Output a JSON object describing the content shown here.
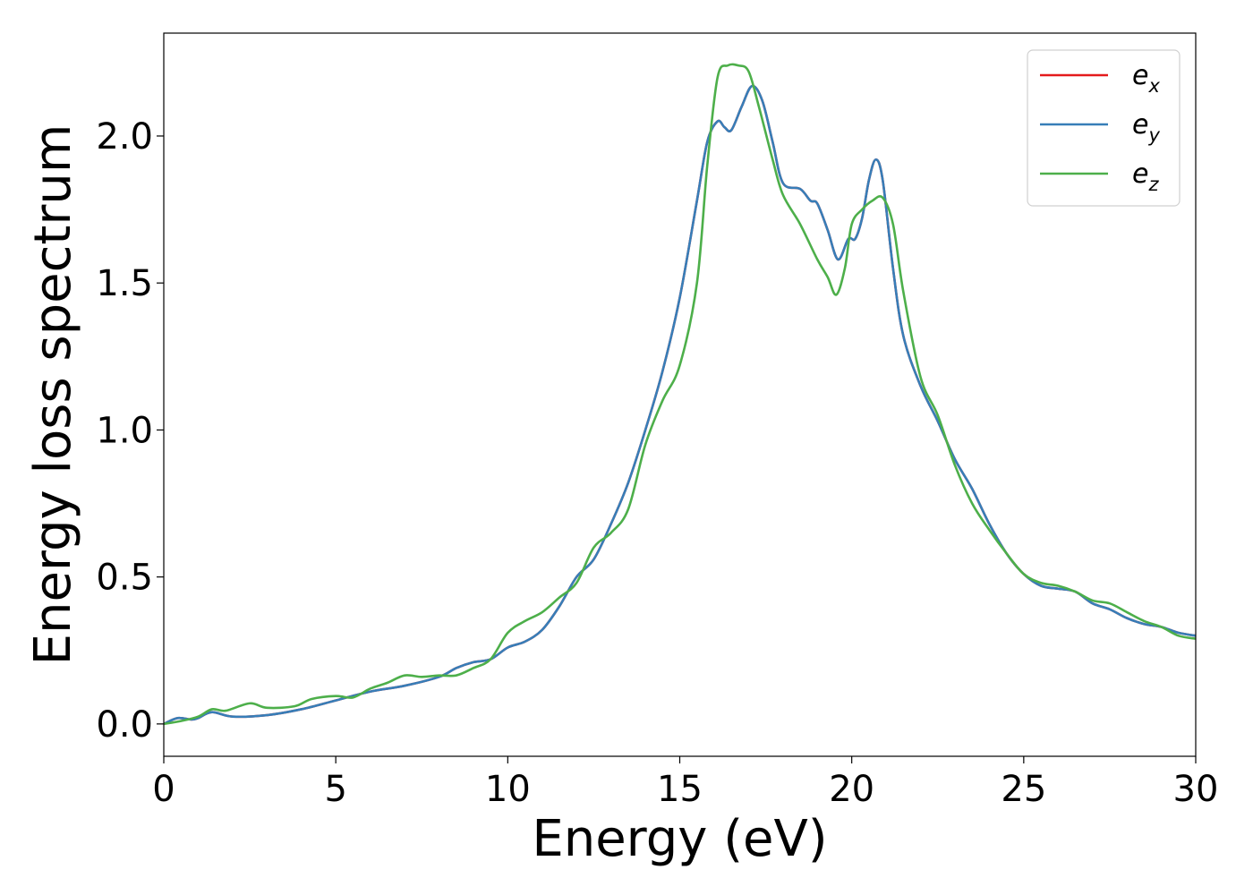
{
  "chart_data": {
    "type": "line",
    "title": "",
    "xlabel": "Energy (eV)",
    "ylabel": "Energy loss spectrum",
    "xlim": [
      0,
      30
    ],
    "ylim": [
      -0.11,
      2.35
    ],
    "xticks": [
      0,
      5,
      10,
      15,
      20,
      25,
      30
    ],
    "yticks": [
      0.0,
      0.5,
      1.0,
      1.5,
      2.0
    ],
    "xtick_labels": [
      "0",
      "5",
      "10",
      "15",
      "20",
      "25",
      "30"
    ],
    "ytick_labels": [
      "0.0",
      "0.5",
      "1.0",
      "1.5",
      "2.0"
    ],
    "grid": false,
    "legend_position": "top-right",
    "series": [
      {
        "name": "e_x",
        "label_base": "e",
        "label_sub": "x",
        "color": "#e41a1c",
        "x": [
          0,
          0.4,
          0.8,
          1.0,
          1.4,
          2.0,
          3.0,
          4.0,
          5.0,
          6.0,
          7.0,
          8.0,
          8.5,
          9.0,
          9.5,
          10.0,
          10.5,
          11.0,
          11.5,
          12.0,
          12.5,
          13.0,
          13.5,
          14.0,
          14.5,
          15.0,
          15.5,
          15.8,
          16.1,
          16.3,
          16.5,
          16.8,
          17.1,
          17.4,
          17.7,
          18.0,
          18.5,
          18.8,
          19.0,
          19.3,
          19.6,
          19.9,
          20.1,
          20.3,
          20.5,
          20.7,
          20.9,
          21.2,
          21.5,
          22.0,
          22.5,
          23.0,
          23.5,
          24.0,
          24.5,
          25.0,
          25.5,
          26.0,
          26.5,
          27.0,
          27.5,
          28.0,
          28.5,
          29.0,
          29.5,
          30.0
        ],
        "y": [
          0.0,
          0.02,
          0.015,
          0.02,
          0.04,
          0.025,
          0.03,
          0.05,
          0.08,
          0.11,
          0.13,
          0.16,
          0.19,
          0.21,
          0.22,
          0.26,
          0.28,
          0.32,
          0.4,
          0.5,
          0.56,
          0.68,
          0.82,
          1.0,
          1.2,
          1.45,
          1.78,
          1.98,
          2.05,
          2.03,
          2.02,
          2.1,
          2.17,
          2.12,
          1.98,
          1.84,
          1.82,
          1.78,
          1.77,
          1.68,
          1.58,
          1.65,
          1.65,
          1.72,
          1.85,
          1.92,
          1.85,
          1.55,
          1.32,
          1.15,
          1.03,
          0.9,
          0.8,
          0.68,
          0.58,
          0.51,
          0.47,
          0.46,
          0.45,
          0.41,
          0.39,
          0.36,
          0.34,
          0.33,
          0.31,
          0.3
        ]
      },
      {
        "name": "e_y",
        "label_base": "e",
        "label_sub": "y",
        "color": "#377eb8",
        "x": [
          0,
          0.4,
          0.8,
          1.0,
          1.4,
          2.0,
          3.0,
          4.0,
          5.0,
          6.0,
          7.0,
          8.0,
          8.5,
          9.0,
          9.5,
          10.0,
          10.5,
          11.0,
          11.5,
          12.0,
          12.5,
          13.0,
          13.5,
          14.0,
          14.5,
          15.0,
          15.5,
          15.8,
          16.1,
          16.3,
          16.5,
          16.8,
          17.1,
          17.4,
          17.7,
          18.0,
          18.5,
          18.8,
          19.0,
          19.3,
          19.6,
          19.9,
          20.1,
          20.3,
          20.5,
          20.7,
          20.9,
          21.2,
          21.5,
          22.0,
          22.5,
          23.0,
          23.5,
          24.0,
          24.5,
          25.0,
          25.5,
          26.0,
          26.5,
          27.0,
          27.5,
          28.0,
          28.5,
          29.0,
          29.5,
          30.0
        ],
        "y": [
          0.0,
          0.02,
          0.015,
          0.02,
          0.04,
          0.025,
          0.03,
          0.05,
          0.08,
          0.11,
          0.13,
          0.16,
          0.19,
          0.21,
          0.22,
          0.26,
          0.28,
          0.32,
          0.4,
          0.5,
          0.56,
          0.68,
          0.82,
          1.0,
          1.2,
          1.45,
          1.78,
          1.98,
          2.05,
          2.03,
          2.02,
          2.1,
          2.17,
          2.12,
          1.98,
          1.84,
          1.82,
          1.78,
          1.77,
          1.68,
          1.58,
          1.65,
          1.65,
          1.72,
          1.85,
          1.92,
          1.85,
          1.55,
          1.32,
          1.15,
          1.03,
          0.9,
          0.8,
          0.68,
          0.58,
          0.51,
          0.47,
          0.46,
          0.45,
          0.41,
          0.39,
          0.36,
          0.34,
          0.33,
          0.31,
          0.3
        ]
      },
      {
        "name": "e_z",
        "label_base": "e",
        "label_sub": "z",
        "color": "#4daf4a",
        "x": [
          0,
          0.5,
          1.0,
          1.4,
          1.8,
          2.5,
          3.0,
          3.8,
          4.3,
          5.0,
          5.5,
          6.0,
          6.5,
          7.0,
          7.5,
          8.0,
          8.5,
          9.0,
          9.5,
          10.0,
          10.5,
          11.0,
          11.5,
          12.0,
          12.5,
          13.0,
          13.5,
          14.0,
          14.5,
          15.0,
          15.5,
          15.8,
          16.1,
          16.4,
          16.7,
          17.0,
          17.3,
          17.7,
          18.0,
          18.5,
          19.0,
          19.3,
          19.55,
          19.8,
          20.0,
          20.3,
          20.6,
          20.9,
          21.2,
          21.5,
          22.0,
          22.5,
          23.0,
          23.5,
          24.0,
          24.5,
          25.0,
          25.5,
          26.0,
          26.5,
          27.0,
          27.5,
          28.0,
          28.5,
          29.0,
          29.5,
          30.0
        ],
        "y": [
          0.0,
          0.01,
          0.025,
          0.05,
          0.045,
          0.07,
          0.055,
          0.06,
          0.085,
          0.095,
          0.09,
          0.12,
          0.14,
          0.165,
          0.16,
          0.165,
          0.165,
          0.19,
          0.22,
          0.31,
          0.35,
          0.38,
          0.43,
          0.48,
          0.6,
          0.65,
          0.73,
          0.95,
          1.1,
          1.22,
          1.5,
          1.9,
          2.2,
          2.24,
          2.24,
          2.22,
          2.1,
          1.92,
          1.8,
          1.7,
          1.58,
          1.52,
          1.46,
          1.55,
          1.7,
          1.75,
          1.78,
          1.79,
          1.7,
          1.47,
          1.18,
          1.05,
          0.88,
          0.75,
          0.66,
          0.58,
          0.51,
          0.48,
          0.47,
          0.45,
          0.42,
          0.41,
          0.38,
          0.35,
          0.33,
          0.3,
          0.29
        ]
      }
    ]
  }
}
